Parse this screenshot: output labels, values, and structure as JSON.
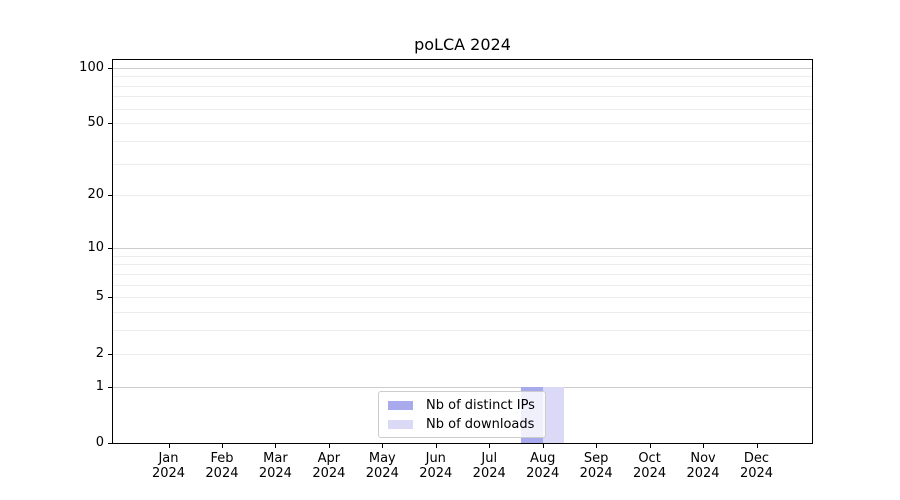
{
  "chart_data": {
    "type": "bar",
    "title": "poLCA 2024",
    "categories": [
      "Jan 2024",
      "Feb 2024",
      "Mar 2024",
      "Apr 2024",
      "May 2024",
      "Jun 2024",
      "Jul 2024",
      "Aug 2024",
      "Sep 2024",
      "Oct 2024",
      "Nov 2024",
      "Dec 2024"
    ],
    "series": [
      {
        "name": "Nb of distinct IPs",
        "color": "#a9a9ee",
        "values": [
          0,
          0,
          0,
          0,
          0,
          0,
          0,
          1,
          0,
          0,
          0,
          0
        ]
      },
      {
        "name": "Nb of downloads",
        "color": "#dadaf6",
        "values": [
          0,
          0,
          0,
          0,
          0,
          0,
          0,
          1,
          0,
          0,
          0,
          0
        ]
      }
    ],
    "xlabel": "",
    "ylabel": "",
    "yscale": "log1p",
    "ylim": [
      0,
      110
    ],
    "y_major_ticks": [
      100,
      50,
      20,
      10,
      5,
      2,
      1,
      0
    ],
    "y_decade_gridlines": [
      1,
      10,
      100
    ],
    "y_minor_gridlines": [
      2,
      3,
      4,
      5,
      6,
      7,
      8,
      9,
      20,
      30,
      40,
      50,
      60,
      70,
      80,
      90
    ],
    "grid": true,
    "legend_position": "lower center"
  },
  "colors": {
    "background": "#ffffff",
    "axis": "#000000",
    "grid_major": "#cdcdcd",
    "grid_minor": "#ededed",
    "legend_border": "#cccccc",
    "ips_bar": "#a9a9ee",
    "downloads_bar": "#dadaf6"
  }
}
